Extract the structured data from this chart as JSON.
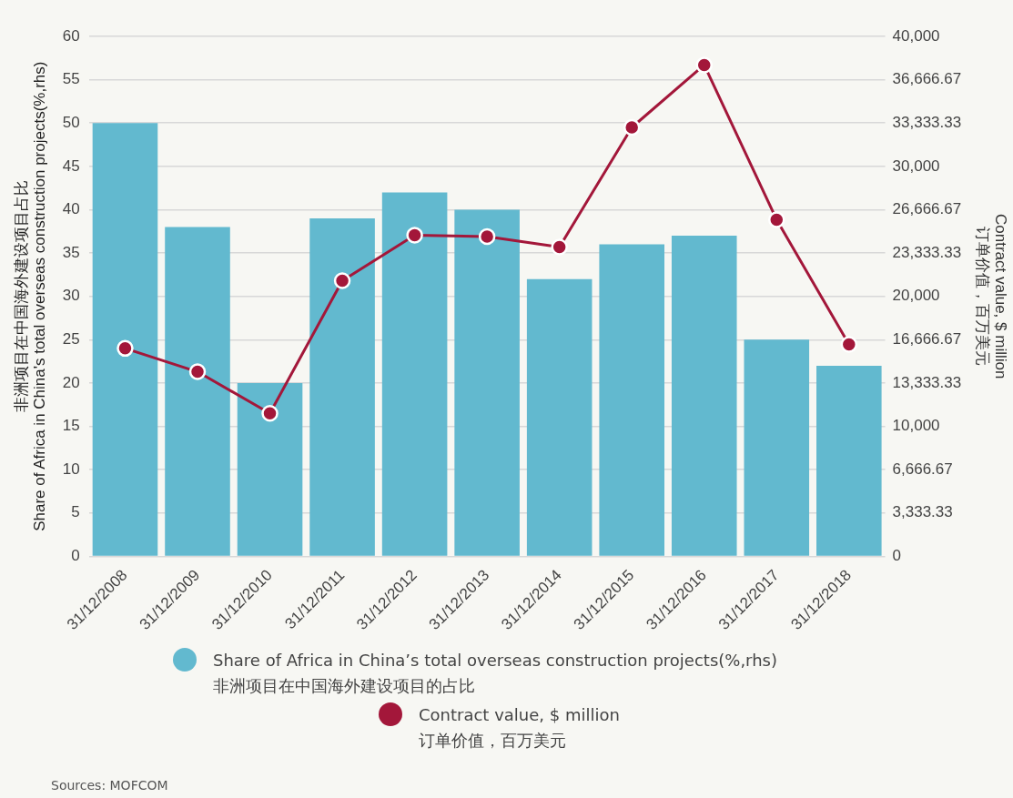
{
  "chart_data": {
    "type": "bar",
    "categories": [
      "31/12/2008",
      "31/12/2009",
      "31/12/2010",
      "31/12/2011",
      "31/12/2012",
      "31/12/2013",
      "31/12/2014",
      "31/12/2015",
      "31/12/2016",
      "31/12/2017",
      "31/12/2018"
    ],
    "series": [
      {
        "name": "Share of Africa in China’s total overseas construction projects(%,rhs)\n非洲项目在中国海外建设项目的占比",
        "color": "#62b9cf",
        "values": [
          50,
          38,
          20,
          39,
          42,
          40,
          32,
          36,
          37,
          25,
          22
        ]
      },
      {
        "name": "Contract value, $ million\n订单价值，百万美元",
        "type": "line",
        "axis": "y2",
        "color": "#a3173a",
        "marker": "circle",
        "line_style": "solid",
        "values": [
          16000,
          14200,
          11000,
          21200,
          24700,
          24600,
          23800,
          33000,
          37800,
          25900,
          16300
        ]
      }
    ],
    "ylabel": "非洲项目在中国海外建设项目占比\nShare of Africa in China's total overseas construction projects(%,rhs)",
    "y2label": "Contract value, $ million\n订单价值，百万美元",
    "ylim": [
      0,
      60
    ],
    "yticks": [
      0,
      5,
      10,
      15,
      20,
      25,
      30,
      35,
      40,
      45,
      50,
      55,
      60
    ],
    "y2lim": [
      0,
      40000
    ],
    "y2ticks": [
      {
        "value": 0,
        "label": "0"
      },
      {
        "value": 3333.33,
        "label": "3,333.33"
      },
      {
        "value": 6666.67,
        "label": "6,666.67"
      },
      {
        "value": 10000,
        "label": "10,000"
      },
      {
        "value": 13333.33,
        "label": "13,333.33"
      },
      {
        "value": 16666.67,
        "label": "16,666.67"
      },
      {
        "value": 20000,
        "label": "20,000"
      },
      {
        "value": 23333.33,
        "label": "23,333.33"
      },
      {
        "value": 26666.67,
        "label": "26,666.67"
      },
      {
        "value": 30000,
        "label": "30,000"
      },
      {
        "value": 33333.33,
        "label": "33,333.33"
      },
      {
        "value": 36666.67,
        "label": "36,666.67"
      },
      {
        "value": 40000,
        "label": "40,000"
      }
    ],
    "grid": "y",
    "legend": "bottom",
    "annotations": [
      "Sources: MOFCOM"
    ]
  }
}
